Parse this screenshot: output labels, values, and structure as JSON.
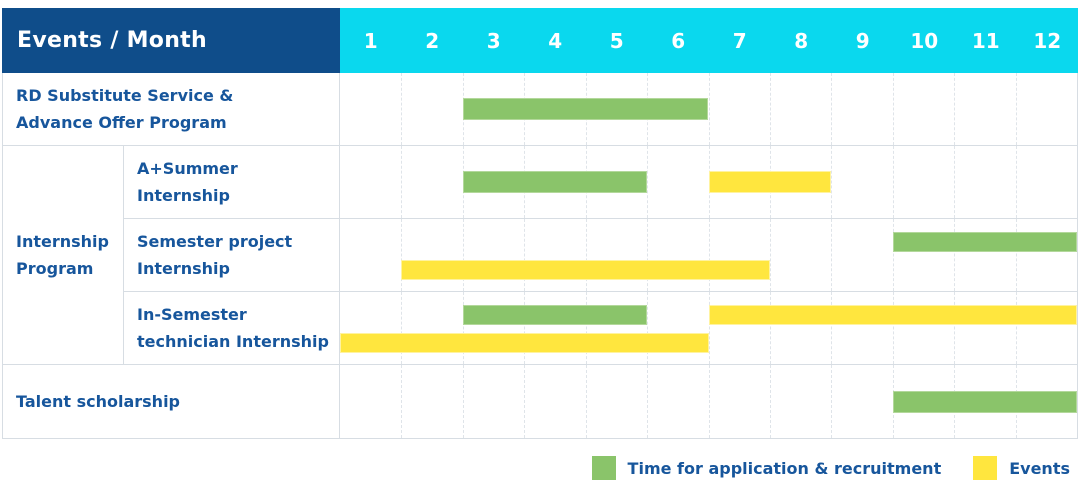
{
  "colors": {
    "navy": "#0f4d8a",
    "cyan": "#0ad8ee",
    "green": "#8ac46a",
    "green_border": "#b3d89b",
    "yellow": "#ffe63e",
    "yellow_border": "#fff3a0",
    "text": "#17569c",
    "grid": "#d7dde3",
    "grid_dash": "#dfe4e9"
  },
  "table": {
    "header": {
      "title": "Events / Month",
      "months": [
        "1",
        "2",
        "3",
        "4",
        "5",
        "6",
        "7",
        "8",
        "9",
        "10",
        "11",
        "12"
      ]
    },
    "rows": [
      {
        "label": "RD Substitute Service &\nAdvance Offer Program",
        "bars": [
          {
            "color": "green",
            "start": 3,
            "end": 6,
            "lane": "mid"
          }
        ]
      },
      {
        "label": "Internship\nProgram",
        "children": [
          {
            "label": "A+Summer\nInternship",
            "bars": [
              {
                "color": "green",
                "start": 3,
                "end": 5,
                "lane": "mid"
              },
              {
                "color": "yellow",
                "start": 7,
                "end": 8,
                "lane": "mid"
              }
            ]
          },
          {
            "label": "Semester project\nInternship",
            "bars": [
              {
                "color": "green",
                "start": 10,
                "end": 12,
                "lane": "top"
              },
              {
                "color": "yellow",
                "start": 2,
                "end": 7,
                "lane": "bottom"
              }
            ]
          },
          {
            "label": "In-Semester\ntechnician Internship",
            "bars": [
              {
                "color": "green",
                "start": 3,
                "end": 5,
                "lane": "top"
              },
              {
                "color": "yellow",
                "start": 7,
                "end": 12,
                "lane": "top"
              },
              {
                "color": "yellow",
                "start": 1,
                "end": 6,
                "lane": "bottom"
              }
            ]
          }
        ]
      },
      {
        "label": "Talent scholarship",
        "bars": [
          {
            "color": "green",
            "start": 10,
            "end": 12,
            "lane": "mid"
          }
        ]
      }
    ]
  },
  "legend": {
    "items": [
      {
        "color": "green",
        "label": "Time for application & recruitment"
      },
      {
        "color": "yellow",
        "label": "Events"
      }
    ]
  },
  "chart_data": {
    "type": "gantt",
    "title": "Events / Month",
    "x_axis": {
      "label": "Month",
      "ticks": [
        1,
        2,
        3,
        4,
        5,
        6,
        7,
        8,
        9,
        10,
        11,
        12
      ],
      "range": [
        1,
        12
      ]
    },
    "grid": true,
    "legend_position": "bottom-right",
    "series_colors": {
      "Time for application & recruitment": "#8ac46a",
      "Events": "#ffe63e"
    },
    "rows": [
      {
        "name": "RD Substitute Service & Advance Offer Program",
        "group": null,
        "bars": [
          {
            "series": "Time for application & recruitment",
            "start_month": 3,
            "end_month": 6
          }
        ]
      },
      {
        "name": "A+Summer Internship",
        "group": "Internship Program",
        "bars": [
          {
            "series": "Time for application & recruitment",
            "start_month": 3,
            "end_month": 5
          },
          {
            "series": "Events",
            "start_month": 7,
            "end_month": 8
          }
        ]
      },
      {
        "name": "Semester project Internship",
        "group": "Internship Program",
        "bars": [
          {
            "series": "Time for application & recruitment",
            "start_month": 10,
            "end_month": 12
          },
          {
            "series": "Events",
            "start_month": 2,
            "end_month": 7
          }
        ]
      },
      {
        "name": "In-Semester technician Internship",
        "group": "Internship Program",
        "bars": [
          {
            "series": "Time for application & recruitment",
            "start_month": 3,
            "end_month": 5
          },
          {
            "series": "Events",
            "start_month": 7,
            "end_month": 12
          },
          {
            "series": "Events",
            "start_month": 1,
            "end_month": 6
          }
        ]
      },
      {
        "name": "Talent scholarship",
        "group": null,
        "bars": [
          {
            "series": "Time for application & recruitment",
            "start_month": 10,
            "end_month": 12
          }
        ]
      }
    ],
    "legend": [
      "Time for application & recruitment",
      "Events"
    ]
  }
}
